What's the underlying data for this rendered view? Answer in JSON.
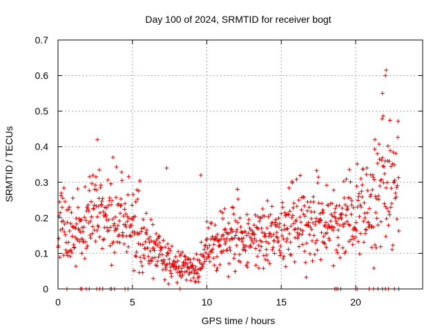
{
  "chart_data": {
    "type": "scatter",
    "title": "Day 100 of 2024, SRMTID for receiver bogt",
    "xlabel": "GPS time / hours",
    "ylabel": "SRMTID / TECUs",
    "xlim": [
      0,
      24.5
    ],
    "ylim": [
      0,
      0.7
    ],
    "xticks": [
      0,
      5,
      10,
      15,
      20
    ],
    "yticks": [
      0,
      0.1,
      0.2,
      0.3,
      0.4,
      0.5,
      0.6,
      0.7
    ],
    "grid": true,
    "marker": "plus",
    "color": "#e00000",
    "series_profile": {
      "name": "SRMTID",
      "hours": [
        0,
        1,
        2,
        2.7,
        3,
        4,
        5,
        6,
        7,
        8,
        9,
        9.5,
        10,
        11,
        12,
        13,
        14,
        15,
        16,
        17,
        18,
        19,
        20,
        21,
        21.5,
        22,
        22.5,
        23
      ],
      "median_tecu": [
        0.18,
        0.15,
        0.2,
        0.25,
        0.22,
        0.2,
        0.19,
        0.13,
        0.09,
        0.07,
        0.06,
        0.06,
        0.11,
        0.13,
        0.14,
        0.13,
        0.15,
        0.17,
        0.17,
        0.19,
        0.2,
        0.18,
        0.2,
        0.24,
        0.26,
        0.3,
        0.27,
        0.28
      ]
    },
    "notable_points": [
      {
        "x": 2.65,
        "y": 0.42
      },
      {
        "x": 7.3,
        "y": 0.34
      },
      {
        "x": 9.6,
        "y": 0.32
      },
      {
        "x": 21.3,
        "y": 0.42
      },
      {
        "x": 21.8,
        "y": 0.55
      },
      {
        "x": 22.0,
        "y": 0.6
      },
      {
        "x": 22.05,
        "y": 0.615
      }
    ],
    "zero_points_x": [
      0.6,
      1.5,
      1.6,
      1.9,
      2.1,
      2.6,
      2.8,
      3.0,
      3.5,
      3.6,
      3.8,
      4.5,
      4.7,
      8.2,
      18.6,
      18.7,
      18.8,
      19.0,
      20.0,
      20.1,
      20.9,
      21.2,
      21.5,
      21.8,
      22.0,
      22.2,
      22.6,
      22.9
    ]
  }
}
